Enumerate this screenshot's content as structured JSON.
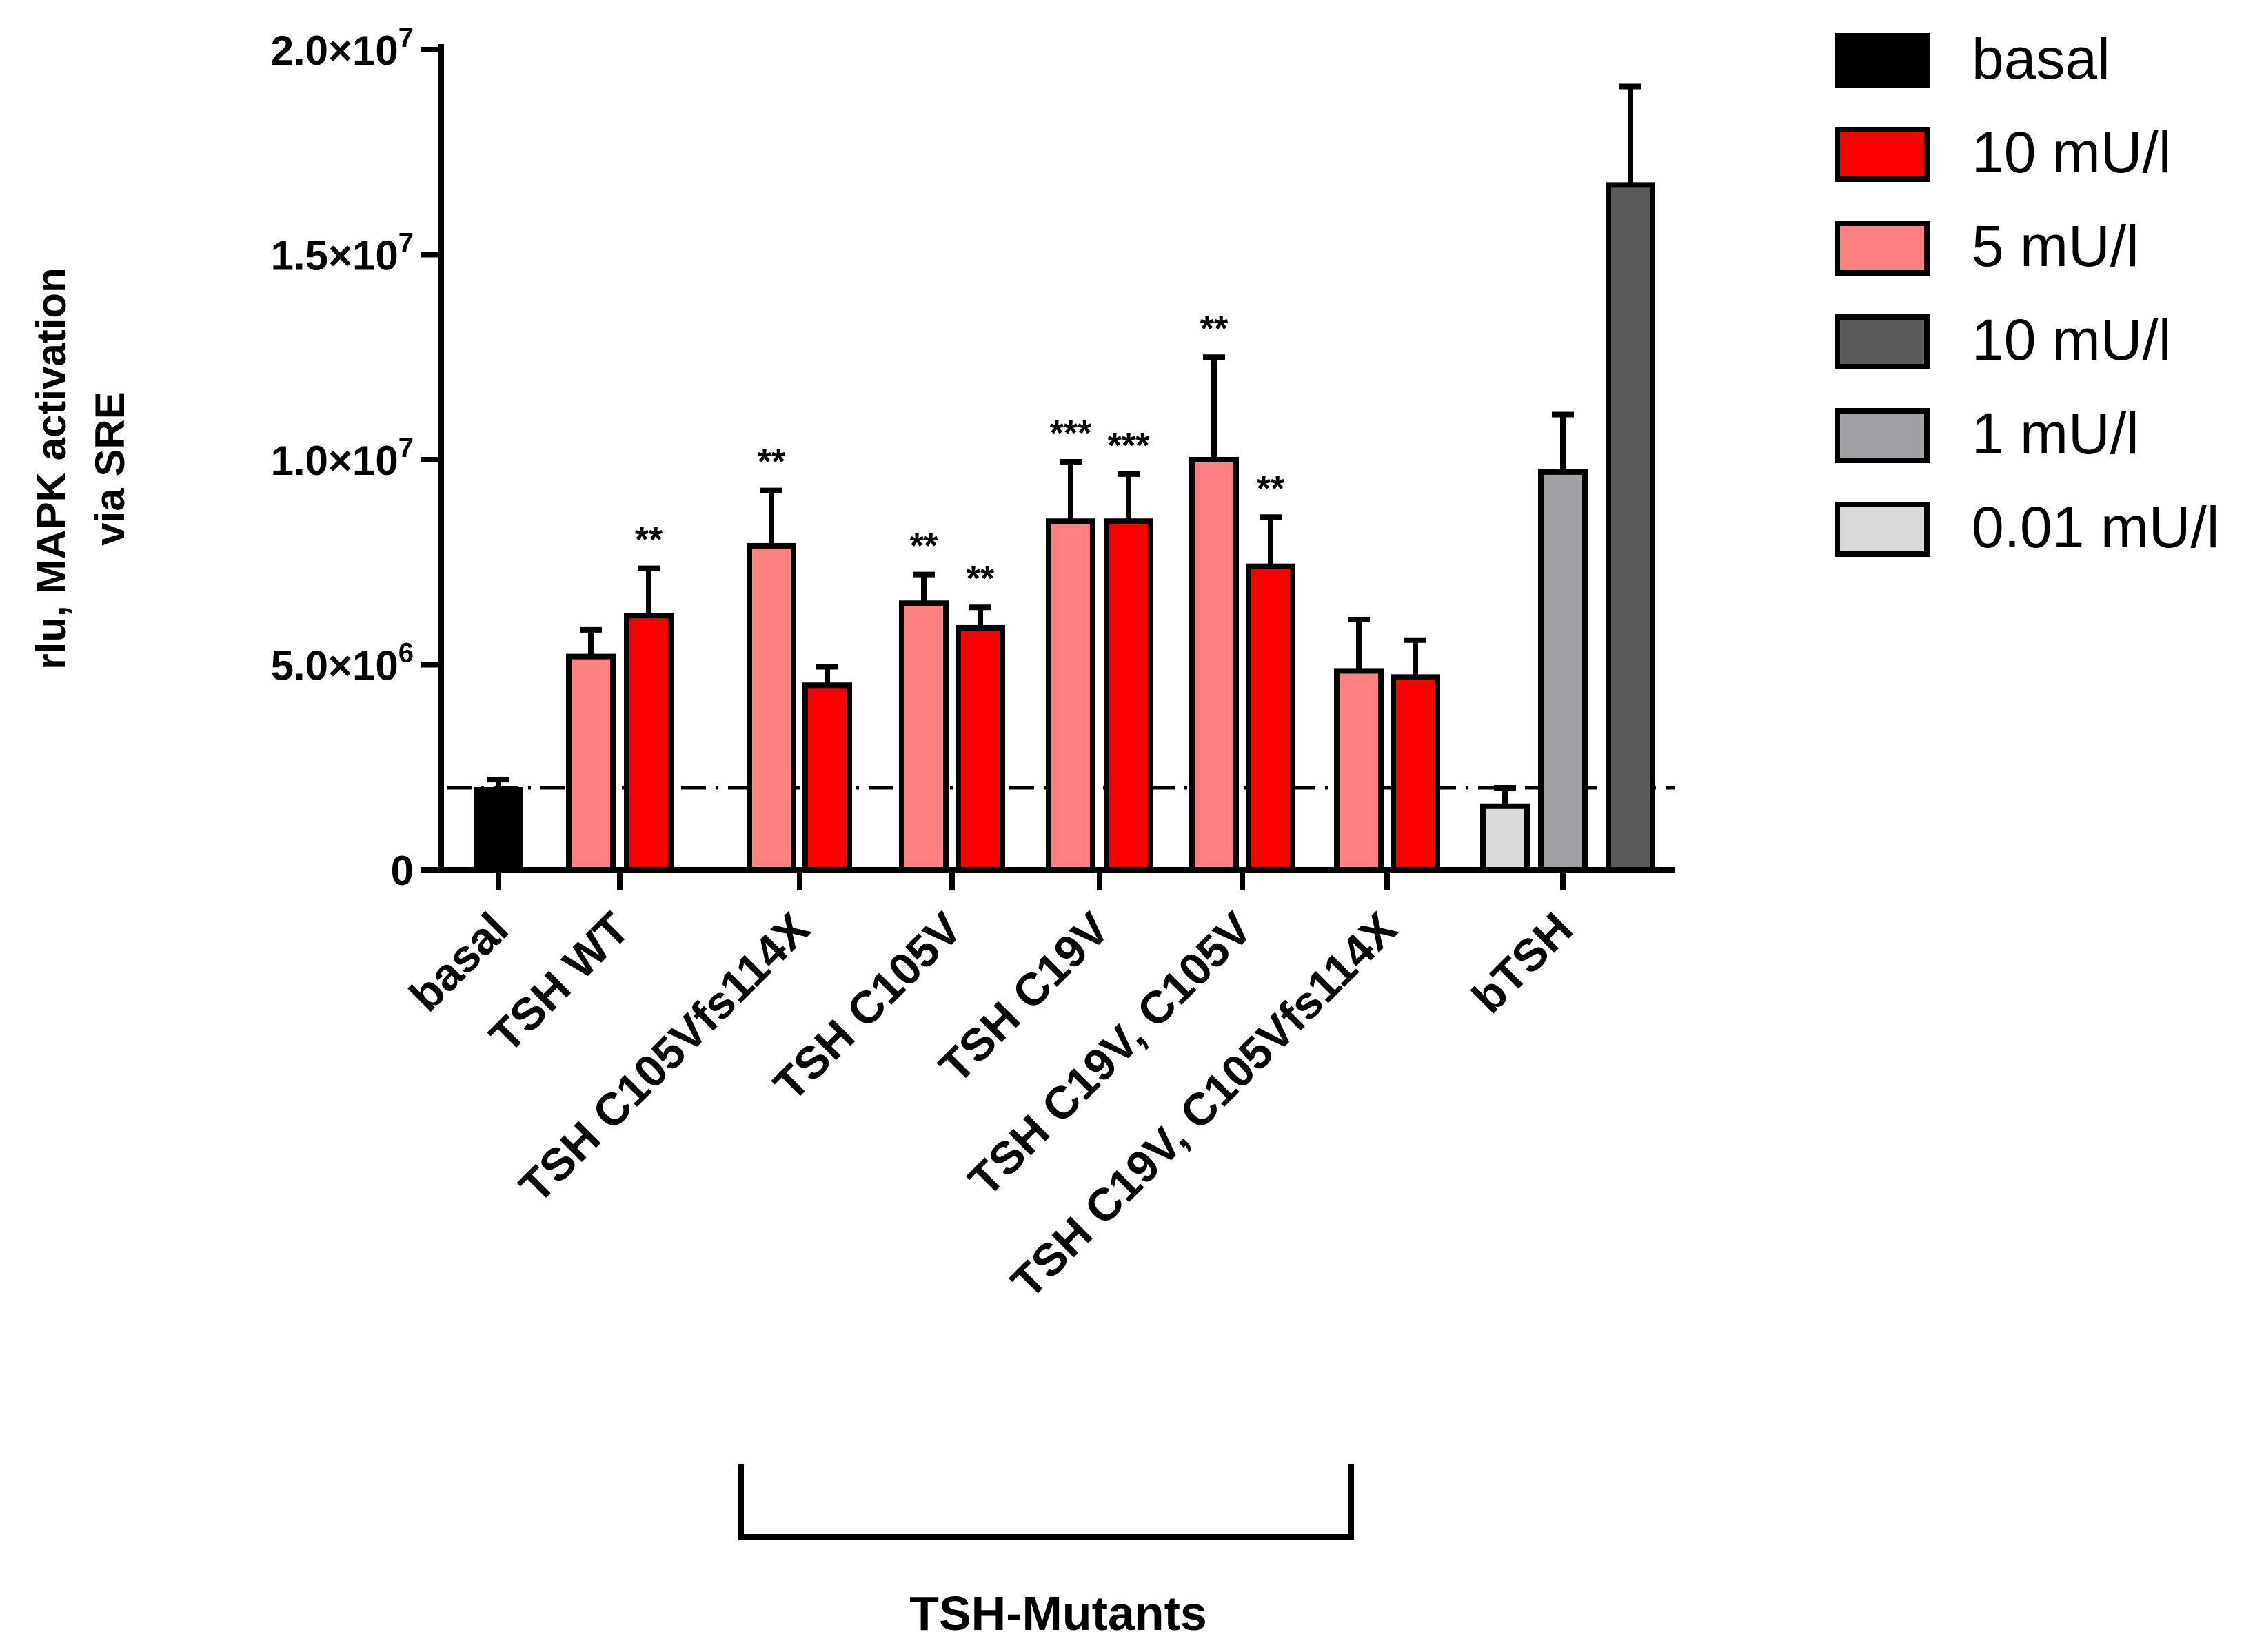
{
  "chart_data": {
    "type": "bar",
    "ylabel_line1": "rlu, MAPK activation",
    "ylabel_line2": "via SRE",
    "ylim": [
      0,
      20000000
    ],
    "yticks": [
      {
        "value": 0,
        "mantissa": "0",
        "exp": ""
      },
      {
        "value": 5000000,
        "mantissa": "5.0×10",
        "exp": "6"
      },
      {
        "value": 10000000,
        "mantissa": "1.0×10",
        "exp": "7"
      },
      {
        "value": 15000000,
        "mantissa": "1.5×10",
        "exp": "7"
      },
      {
        "value": 20000000,
        "mantissa": "2.0×10",
        "exp": "7"
      }
    ],
    "reference_line": 2000000,
    "legend": [
      {
        "label": "basal",
        "color": "#000000"
      },
      {
        "label": "10 mU/l",
        "color": "#ff0000"
      },
      {
        "label": "5 mU/l",
        "color": "#ff8080"
      },
      {
        "label": "10 mU/l",
        "color": "#5a5a5a"
      },
      {
        "label": "1 mU/l",
        "color": "#a0a0a4"
      },
      {
        "label": "0.01 mU/l",
        "color": "#d9d9d9"
      }
    ],
    "categories": [
      "basal",
      "TSH WT",
      "TSH C105Vfs114X",
      "TSH C105V",
      "TSH C19V",
      "TSH C19V, C105V",
      "TSH C19V, C105Vfs114X",
      "bTSH"
    ],
    "bars": [
      {
        "category": "basal",
        "series": "basal",
        "value": 1950000,
        "error": 250000,
        "color": "#000000",
        "annot": ""
      },
      {
        "category": "TSH WT",
        "series": "5 mU/l",
        "value": 5200000,
        "error": 650000,
        "color": "#ff8080",
        "annot": ""
      },
      {
        "category": "TSH WT",
        "series": "10 mU/l",
        "value": 6200000,
        "error": 1150000,
        "color": "#ff0000",
        "annot": "**"
      },
      {
        "category": "TSH C105Vfs114X",
        "series": "5 mU/l",
        "value": 7900000,
        "error": 1350000,
        "color": "#ff8080",
        "annot": "**"
      },
      {
        "category": "TSH C105Vfs114X",
        "series": "10 mU/l",
        "value": 4500000,
        "error": 450000,
        "color": "#ff0000",
        "annot": ""
      },
      {
        "category": "TSH C105V",
        "series": "5 mU/l",
        "value": 6500000,
        "error": 700000,
        "color": "#ff8080",
        "annot": "**"
      },
      {
        "category": "TSH C105V",
        "series": "10 mU/l",
        "value": 5900000,
        "error": 500000,
        "color": "#ff0000",
        "annot": "**"
      },
      {
        "category": "TSH C19V",
        "series": "5 mU/l",
        "value": 8500000,
        "error": 1450000,
        "color": "#ff8080",
        "annot": "***"
      },
      {
        "category": "TSH C19V",
        "series": "10 mU/l",
        "value": 8500000,
        "error": 1150000,
        "color": "#ff0000",
        "annot": "***"
      },
      {
        "category": "TSH C19V, C105V",
        "series": "5 mU/l",
        "value": 10000000,
        "error": 2500000,
        "color": "#ff8080",
        "annot": "**"
      },
      {
        "category": "TSH C19V, C105V",
        "series": "10 mU/l",
        "value": 7400000,
        "error": 1200000,
        "color": "#ff0000",
        "annot": "**"
      },
      {
        "category": "TSH C19V, C105Vfs114X",
        "series": "5 mU/l",
        "value": 4850000,
        "error": 1250000,
        "color": "#ff8080",
        "annot": ""
      },
      {
        "category": "TSH C19V, C105Vfs114X",
        "series": "10 mU/l",
        "value": 4700000,
        "error": 900000,
        "color": "#ff0000",
        "annot": ""
      },
      {
        "category": "bTSH",
        "series": "0.01 mU/l",
        "value": 1550000,
        "error": 450000,
        "color": "#d9d9d9",
        "annot": ""
      },
      {
        "category": "bTSH",
        "series": "1 mU/l",
        "value": 9700000,
        "error": 1400000,
        "color": "#a0a0a4",
        "annot": ""
      },
      {
        "category": "bTSH",
        "series": "10 mU/l",
        "value": 16700000,
        "error": 2400000,
        "color": "#5a5a5a",
        "annot": ""
      }
    ],
    "group_bracket_label": "TSH-Mutants",
    "grid": false,
    "legend_position": "top-right"
  }
}
